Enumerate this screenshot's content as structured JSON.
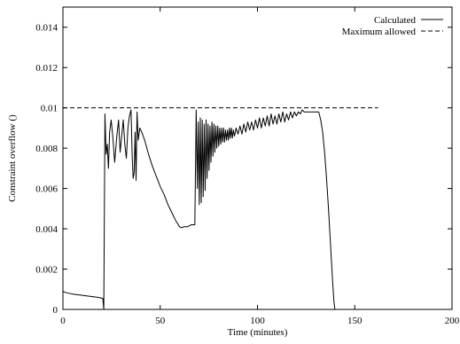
{
  "chart_data": {
    "type": "line",
    "title": "",
    "xlabel": "Time (minutes)",
    "ylabel": "Constraint overflow ()",
    "xlim": [
      0,
      200
    ],
    "ylim": [
      0,
      0.015
    ],
    "x_ticks": [
      0,
      50,
      100,
      150,
      200
    ],
    "x_tick_labels": [
      "0",
      "50",
      "100",
      "150",
      "200"
    ],
    "y_ticks": [
      0,
      0.002,
      0.004,
      0.006,
      0.008,
      0.01,
      0.012,
      0.014
    ],
    "y_tick_labels": [
      "0",
      "0.002",
      "0.004",
      "0.006",
      "0.008",
      "0.01",
      "0.012",
      "0.014"
    ],
    "grid": false,
    "legend_position": "top-right",
    "series": [
      {
        "name": "Calculated",
        "style": "solid",
        "color": "#000000",
        "points": [
          [
            0,
            0.0009
          ],
          [
            1,
            0.00085
          ],
          [
            3,
            0.0008
          ],
          [
            6,
            0.00075
          ],
          [
            10,
            0.0007
          ],
          [
            14,
            0.00065
          ],
          [
            18,
            0.0006
          ],
          [
            20.5,
            0.00055
          ],
          [
            21,
            0.0
          ],
          [
            21.6,
            0.0097
          ],
          [
            22.2,
            0.0077
          ],
          [
            22.8,
            0.0082
          ],
          [
            23.4,
            0.007
          ],
          [
            24,
            0.0088
          ],
          [
            24.8,
            0.0094
          ],
          [
            25.6,
            0.0086
          ],
          [
            26.6,
            0.0073
          ],
          [
            27.6,
            0.0085
          ],
          [
            28.6,
            0.0094
          ],
          [
            29.4,
            0.0078
          ],
          [
            30.2,
            0.0086
          ],
          [
            31,
            0.0094
          ],
          [
            31.8,
            0.0082
          ],
          [
            32.6,
            0.0075
          ],
          [
            33.4,
            0.009
          ],
          [
            34.2,
            0.0096
          ],
          [
            35,
            0.0099
          ],
          [
            35.6,
            0.0076
          ],
          [
            36.1,
            0.0065
          ],
          [
            36.6,
            0.0068
          ],
          [
            37.1,
            0.0088
          ],
          [
            37.6,
            0.0064
          ],
          [
            38.1,
            0.0098
          ],
          [
            38.7,
            0.0084
          ],
          [
            39.5,
            0.009
          ],
          [
            40.5,
            0.0088
          ],
          [
            42,
            0.0084
          ],
          [
            44,
            0.0077
          ],
          [
            46,
            0.0071
          ],
          [
            48,
            0.0066
          ],
          [
            50,
            0.0061
          ],
          [
            52,
            0.0057
          ],
          [
            54,
            0.0052
          ],
          [
            56,
            0.0048
          ],
          [
            58,
            0.0044
          ],
          [
            60,
            0.0041
          ],
          [
            61,
            0.00405
          ],
          [
            62,
            0.0041
          ],
          [
            64,
            0.0041
          ],
          [
            66,
            0.0042
          ],
          [
            67.8,
            0.0042
          ],
          [
            68.5,
            0.0099
          ],
          [
            69.1,
            0.006
          ],
          [
            69.6,
            0.0093
          ],
          [
            70.1,
            0.0052
          ],
          [
            70.6,
            0.0095
          ],
          [
            71.1,
            0.0053
          ],
          [
            71.6,
            0.0094
          ],
          [
            72.1,
            0.0056
          ],
          [
            72.6,
            0.0092
          ],
          [
            73.1,
            0.0059
          ],
          [
            73.6,
            0.0094
          ],
          [
            74.1,
            0.0065
          ],
          [
            74.6,
            0.0092
          ],
          [
            75.1,
            0.0069
          ],
          [
            75.6,
            0.0091
          ],
          [
            76.1,
            0.0073
          ],
          [
            76.6,
            0.0093
          ],
          [
            77.1,
            0.0076
          ],
          [
            77.6,
            0.0092
          ],
          [
            78.1,
            0.0078
          ],
          [
            78.6,
            0.0091
          ],
          [
            79.1,
            0.008
          ],
          [
            79.6,
            0.0091
          ],
          [
            80.1,
            0.0081
          ],
          [
            80.6,
            0.009
          ],
          [
            81.1,
            0.0082
          ],
          [
            81.6,
            0.009
          ],
          [
            82.1,
            0.0083
          ],
          [
            82.6,
            0.009
          ],
          [
            83.1,
            0.0083
          ],
          [
            83.6,
            0.0089
          ],
          [
            84.1,
            0.0084
          ],
          [
            84.6,
            0.0089
          ],
          [
            85.1,
            0.0084
          ],
          [
            85.6,
            0.009
          ],
          [
            86.1,
            0.0085
          ],
          [
            86.6,
            0.009
          ],
          [
            87.1,
            0.0085
          ],
          [
            87.6,
            0.0089
          ],
          [
            88.2,
            0.0086
          ],
          [
            89,
            0.009
          ],
          [
            90,
            0.0087
          ],
          [
            91,
            0.0091
          ],
          [
            92,
            0.0087
          ],
          [
            93,
            0.0092
          ],
          [
            94,
            0.0088
          ],
          [
            95,
            0.0093
          ],
          [
            96,
            0.0089
          ],
          [
            97,
            0.0093
          ],
          [
            98,
            0.0089
          ],
          [
            99,
            0.0094
          ],
          [
            100,
            0.009
          ],
          [
            101,
            0.0095
          ],
          [
            102,
            0.009
          ],
          [
            103,
            0.0095
          ],
          [
            104,
            0.0091
          ],
          [
            105,
            0.0096
          ],
          [
            106,
            0.0091
          ],
          [
            107,
            0.0097
          ],
          [
            108,
            0.0092
          ],
          [
            109,
            0.0096
          ],
          [
            110,
            0.0092
          ],
          [
            111,
            0.0097
          ],
          [
            112,
            0.0093
          ],
          [
            113,
            0.0098
          ],
          [
            114,
            0.0093
          ],
          [
            115,
            0.0097
          ],
          [
            116,
            0.0094
          ],
          [
            117,
            0.0098
          ],
          [
            118,
            0.0095
          ],
          [
            119,
            0.0098
          ],
          [
            120,
            0.0096
          ],
          [
            121,
            0.0098
          ],
          [
            122,
            0.0097
          ],
          [
            123,
            0.0099
          ],
          [
            124,
            0.0098
          ],
          [
            126,
            0.0098
          ],
          [
            128,
            0.0098
          ],
          [
            130,
            0.0098
          ],
          [
            131.5,
            0.0098
          ],
          [
            132.5,
            0.0094
          ],
          [
            133.5,
            0.0088
          ],
          [
            134.5,
            0.0078
          ],
          [
            135.5,
            0.0065
          ],
          [
            136.5,
            0.005
          ],
          [
            137.5,
            0.0033
          ],
          [
            138.5,
            0.0016
          ],
          [
            139.3,
            0.0004
          ],
          [
            139.8,
            0.0
          ]
        ]
      },
      {
        "name": "Maximum allowed",
        "style": "dashed",
        "color": "#000000",
        "points": [
          [
            0,
            0.01
          ],
          [
            162,
            0.01
          ]
        ]
      }
    ]
  }
}
